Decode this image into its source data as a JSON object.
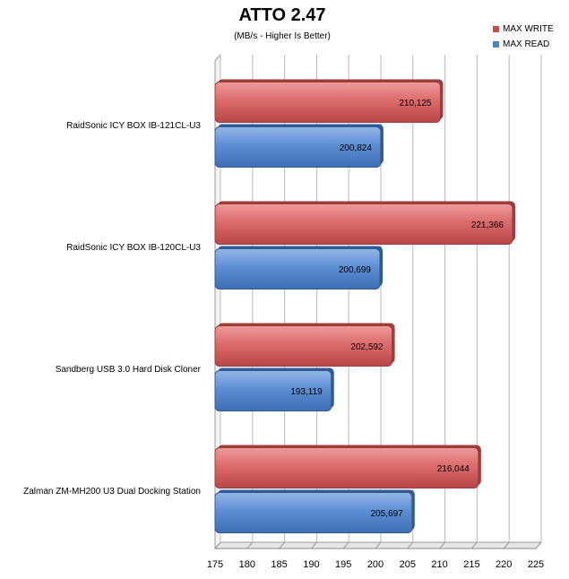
{
  "chart_data": {
    "type": "bar",
    "orientation": "horizontal",
    "title": "ATTO 2.47",
    "subtitle": "(MB/s - Higher Is Better)",
    "categories": [
      "RaidSonic ICY BOX IB-121CL-U3",
      "RaidSonic ICY BOX IB-120CL-U3",
      "Sandberg USB 3.0 Hard Disk Cloner",
      "Zalman ZM-MH200 U3 Dual Docking Station"
    ],
    "series": [
      {
        "name": "MAX WRITE",
        "color": "#d25a5a",
        "values": [
          210.125,
          221.366,
          202.592,
          216.044
        ],
        "labels": [
          "210,125",
          "221,366",
          "202,592",
          "216,044"
        ]
      },
      {
        "name": "MAX READ",
        "color": "#4f7fc6",
        "values": [
          200.824,
          200.699,
          193.119,
          205.697
        ],
        "labels": [
          "200,824",
          "200,699",
          "193,119",
          "205,697"
        ]
      }
    ],
    "xlim": [
      175,
      225
    ],
    "xticks": [
      "175",
      "180",
      "185",
      "190",
      "195",
      "200",
      "205",
      "210",
      "215",
      "220",
      "225"
    ],
    "grid": true,
    "legend_position": "top-right"
  }
}
